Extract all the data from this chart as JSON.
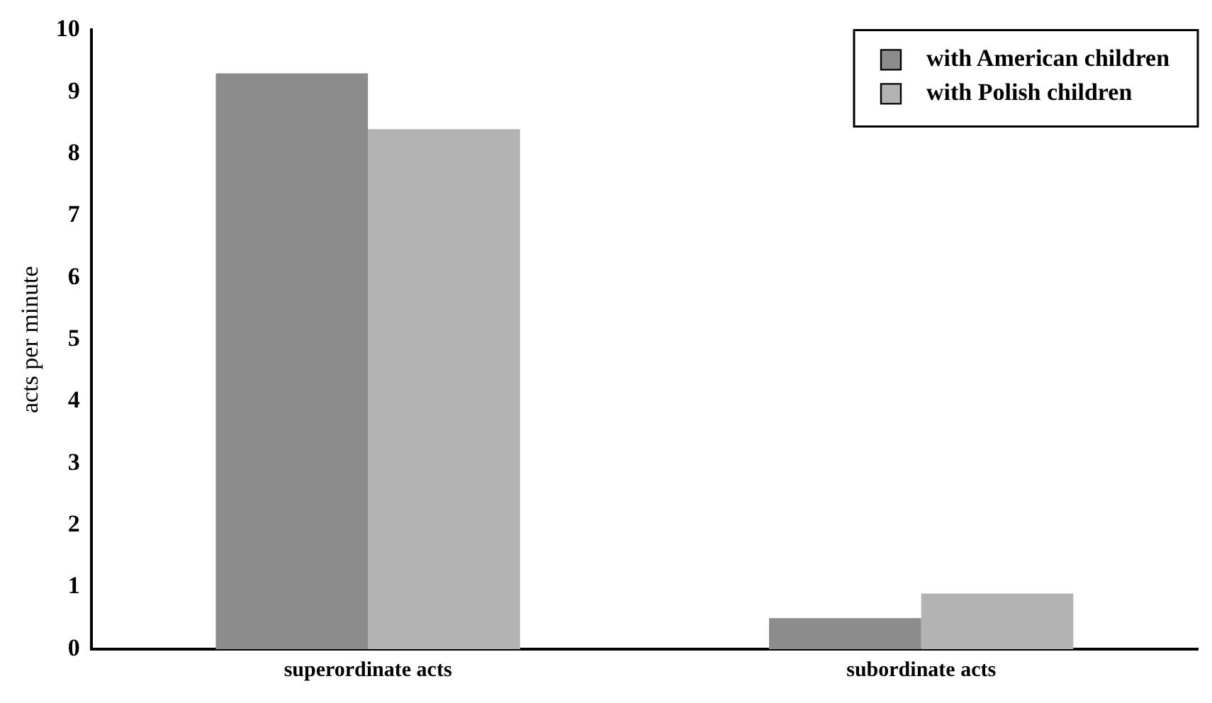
{
  "chart_data": {
    "type": "bar",
    "ylabel": "acts per minute",
    "categories": [
      "superordinate acts",
      "subordinate acts"
    ],
    "series": [
      {
        "name": "with American children",
        "color": "#8c8c8c",
        "values": [
          9.3,
          0.5
        ]
      },
      {
        "name": "with Polish children",
        "color": "#b3b3b3",
        "values": [
          8.4,
          0.9
        ]
      }
    ],
    "ylim": [
      0,
      10
    ],
    "yticks": [
      0,
      1,
      2,
      3,
      4,
      5,
      6,
      7,
      8,
      9,
      10
    ],
    "grid": false,
    "legend": "top right"
  }
}
